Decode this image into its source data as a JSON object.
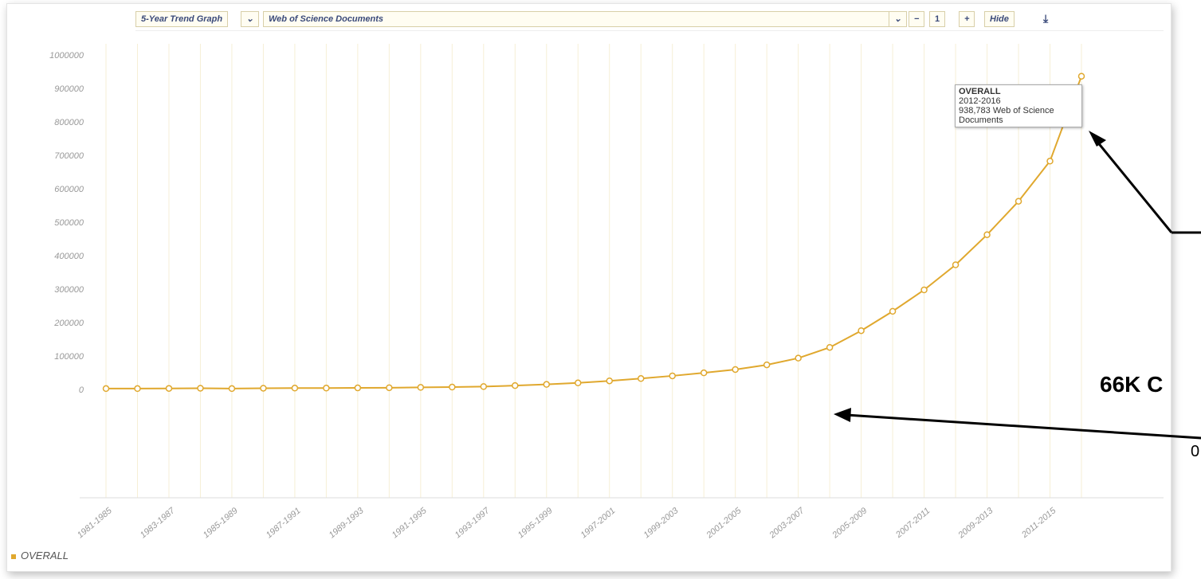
{
  "toolbar": {
    "graph_type": "5-Year Trend Graph",
    "metric": "Web of Science Documents",
    "page": "1",
    "hide": "Hide"
  },
  "chart_data": {
    "type": "line",
    "categories": [
      "1981-1985",
      null,
      "1983-1987",
      null,
      "1985-1989",
      null,
      "1987-1991",
      null,
      "1989-1993",
      null,
      "1991-1995",
      null,
      "1993-1997",
      null,
      "1995-1999",
      null,
      "1997-2001",
      null,
      "1999-2003",
      null,
      "2001-2005",
      null,
      "2003-2007",
      null,
      "2005-2009",
      null,
      "2007-2011",
      null,
      "2009-2013",
      null,
      "2011-2015",
      null
    ],
    "series": [
      {
        "name": "OVERALL",
        "color": "#e0a82e",
        "values": [
          5000,
          5000,
          5500,
          6000,
          5000,
          6000,
          6500,
          6500,
          7000,
          7500,
          8500,
          9500,
          11000,
          14000,
          17500,
          22000,
          28000,
          35000,
          43000,
          52000,
          62000,
          76000,
          96000,
          128000,
          178000,
          236000,
          300000,
          375000,
          465000,
          565000,
          685000,
          938783
        ]
      }
    ],
    "ylim": [
      0,
      1000000
    ],
    "yticks": [
      0,
      100000,
      200000,
      300000,
      400000,
      500000,
      600000,
      700000,
      800000,
      900000,
      1000000
    ],
    "grid": "x",
    "tooltip": {
      "title": "OVERALL",
      "period": "2012-2016",
      "text": "938,783 Web of Science Documents"
    },
    "annotations": [
      "66K C",
      "0"
    ]
  }
}
